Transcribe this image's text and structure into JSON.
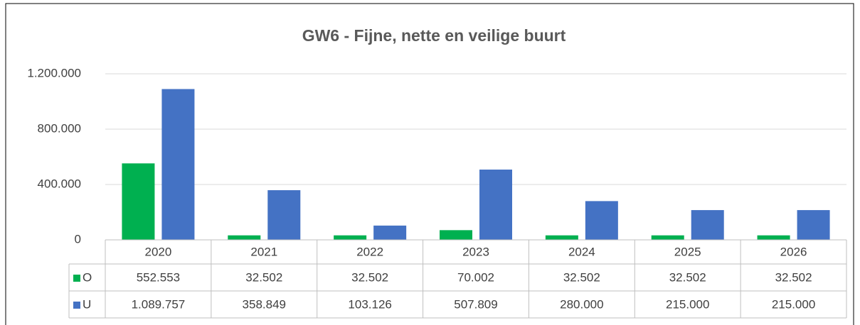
{
  "chart_data": {
    "type": "bar",
    "title": "GW6 - Fijne, nette en veilige buurt",
    "categories": [
      "2020",
      "2021",
      "2022",
      "2023",
      "2024",
      "2025",
      "2026"
    ],
    "series": [
      {
        "name": "O",
        "color": "#00b050",
        "values": [
          552553,
          32502,
          32502,
          70002,
          32502,
          32502,
          32502
        ],
        "value_labels": [
          "552.553",
          "32.502",
          "32.502",
          "70.002",
          "32.502",
          "32.502",
          "32.502"
        ]
      },
      {
        "name": "U",
        "color": "#4472c4",
        "values": [
          1089757,
          358849,
          103126,
          507809,
          280000,
          215000,
          215000
        ],
        "value_labels": [
          "1.089.757",
          "358.849",
          "103.126",
          "507.809",
          "280.000",
          "215.000",
          "215.000"
        ]
      }
    ],
    "ylim": [
      0,
      1200000
    ],
    "yticks": [
      0,
      {
        "value": 400000,
        "label": "400.000"
      },
      {
        "value": 800000,
        "label": "800.000"
      },
      {
        "value": 1200000,
        "label": "1.200.000"
      }
    ],
    "grid": true,
    "data_table": true
  }
}
